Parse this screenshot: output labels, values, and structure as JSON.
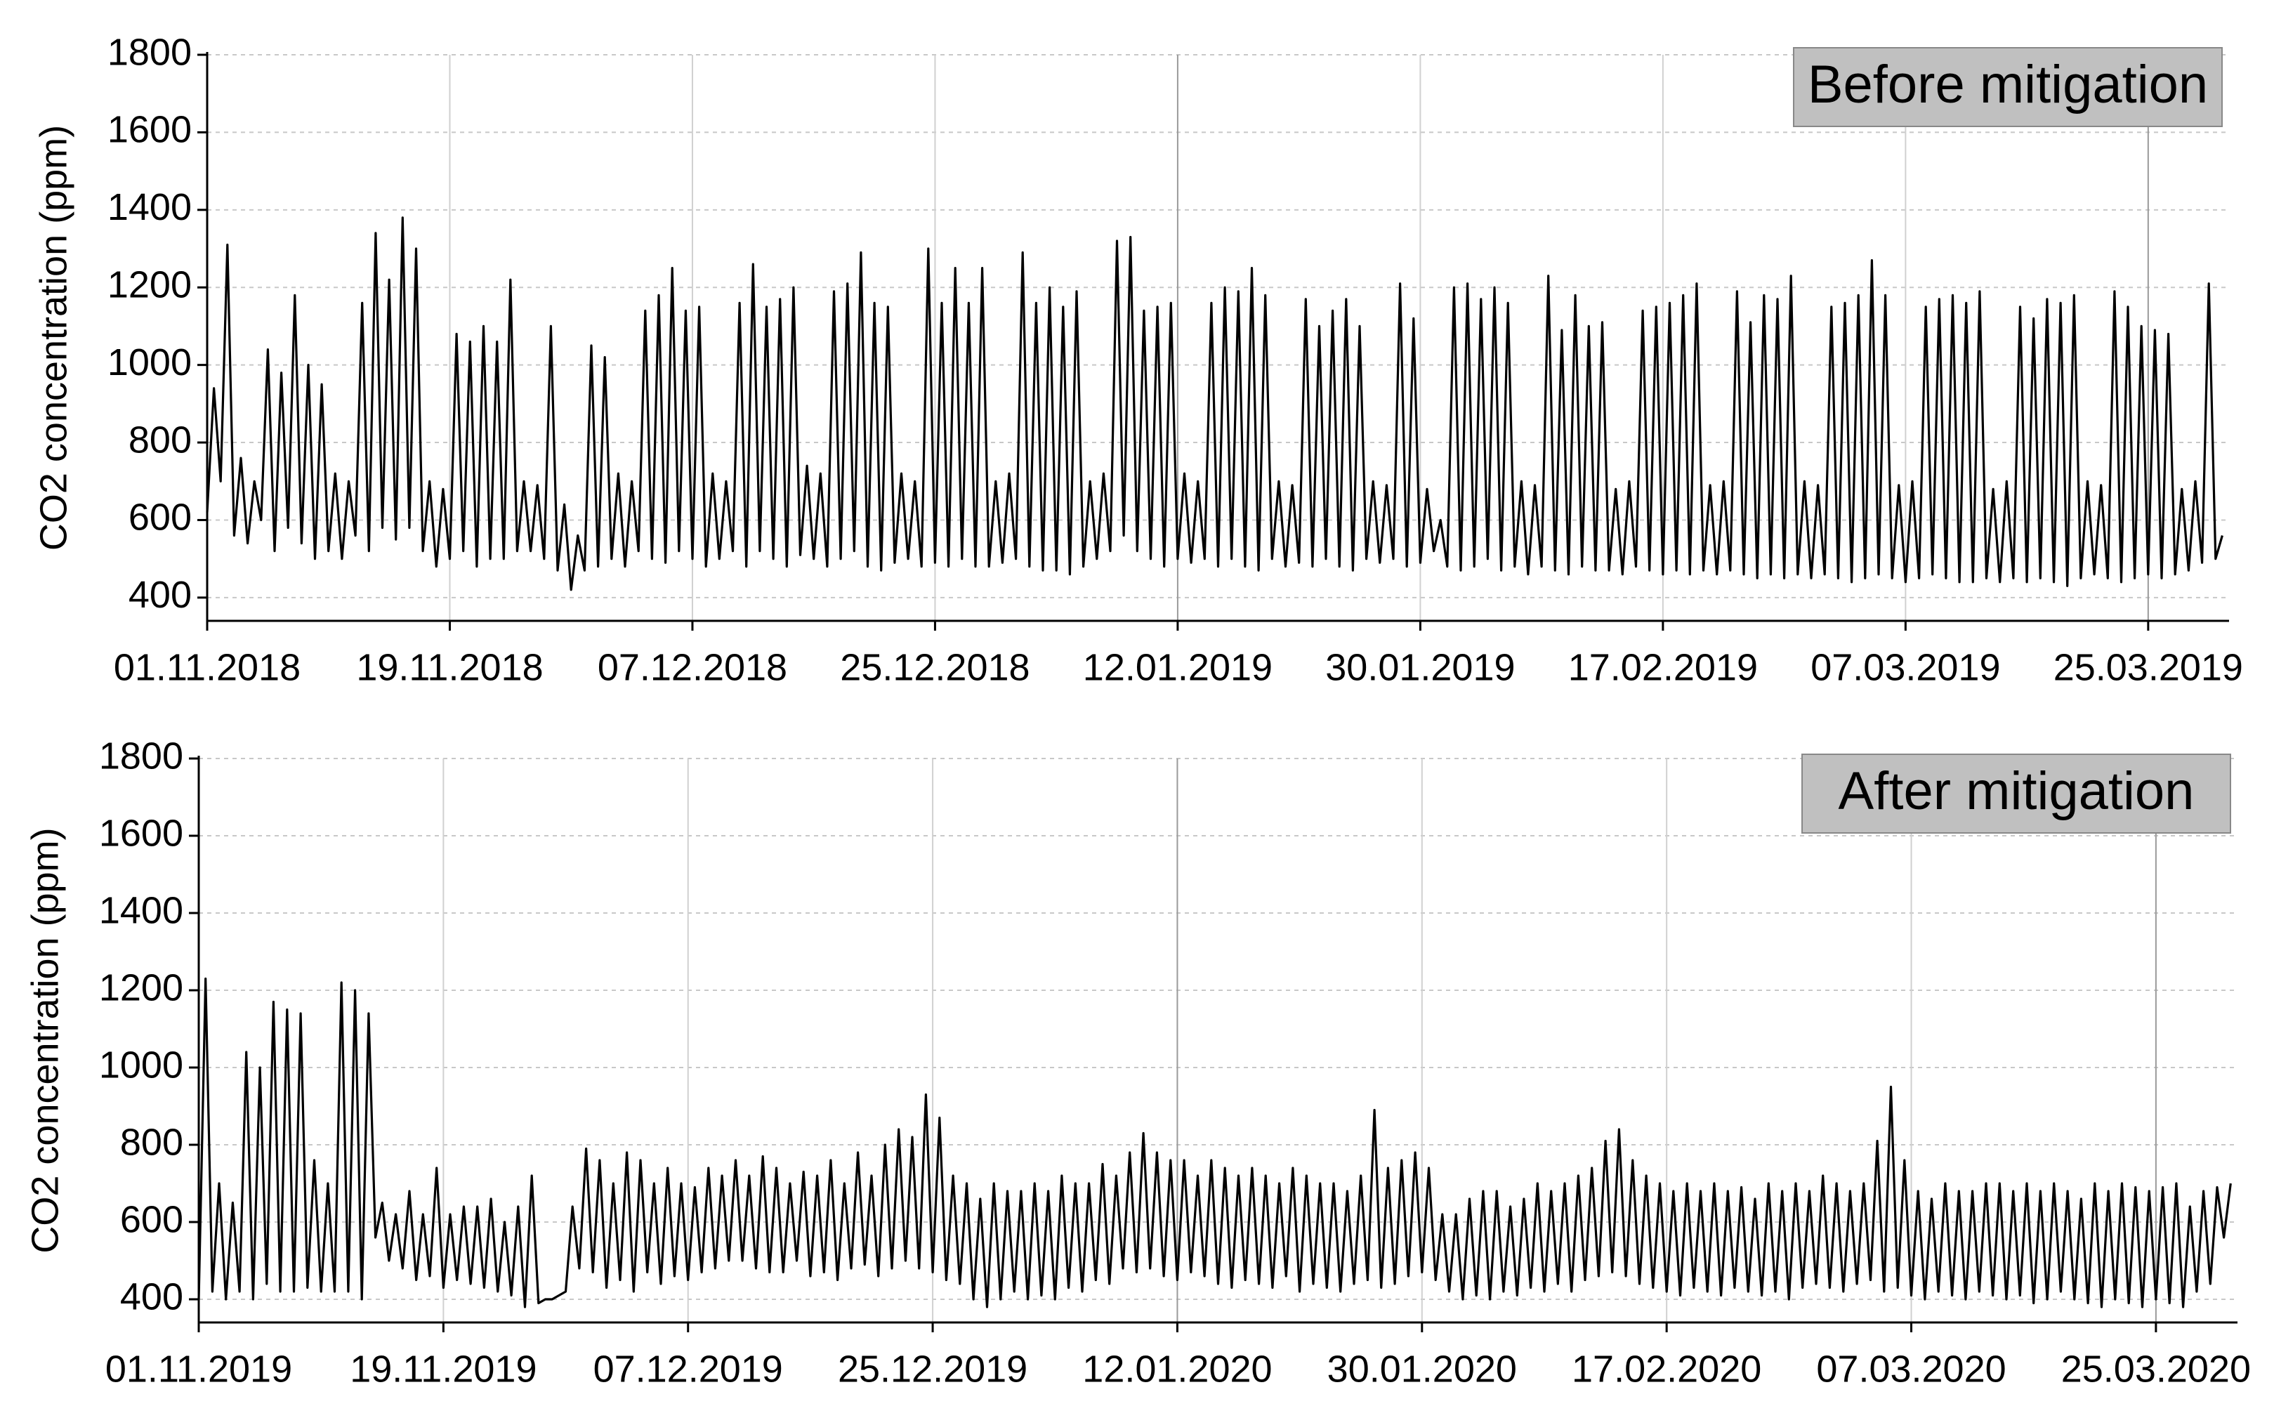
{
  "chart_data": [
    {
      "type": "line",
      "title": "Before mitigation",
      "ylabel": "CO2 concentration (ppm)",
      "color": "#000000",
      "grid": true,
      "xlim": [
        0,
        150
      ],
      "ylim": [
        340,
        1800
      ],
      "yticks": [
        400,
        600,
        800,
        1000,
        1200,
        1400,
        1600,
        1800
      ],
      "xticks": [
        {
          "value": 0,
          "label": "01.11.2018"
        },
        {
          "value": 18,
          "label": "19.11.2018"
        },
        {
          "value": 36,
          "label": "07.12.2018"
        },
        {
          "value": 54,
          "label": "25.12.2018"
        },
        {
          "value": 72,
          "label": "12.01.2019"
        },
        {
          "value": 90,
          "label": "30.01.2019"
        },
        {
          "value": 108,
          "label": "17.02.2019"
        },
        {
          "value": 126,
          "label": "07.03.2019"
        },
        {
          "value": 144,
          "label": "25.03.2019"
        }
      ],
      "x": [
        0,
        0.5,
        1,
        1.5,
        2,
        2.5,
        3,
        3.5,
        4,
        4.5,
        5,
        5.5,
        6,
        6.5,
        7,
        7.5,
        8,
        8.5,
        9,
        9.5,
        10,
        10.5,
        11,
        11.5,
        12,
        12.5,
        13,
        13.5,
        14,
        14.5,
        15,
        15.5,
        16,
        16.5,
        17,
        17.5,
        18,
        18.5,
        19,
        19.5,
        20,
        20.5,
        21,
        21.5,
        22,
        22.5,
        23,
        23.5,
        24,
        24.5,
        25,
        25.5,
        26,
        26.5,
        27,
        27.5,
        28,
        28.5,
        29,
        29.5,
        30,
        30.5,
        31,
        31.5,
        32,
        32.5,
        33,
        33.5,
        34,
        34.5,
        35,
        35.5,
        36,
        36.5,
        37,
        37.5,
        38,
        38.5,
        39,
        39.5,
        40,
        40.5,
        41,
        41.5,
        42,
        42.5,
        43,
        43.5,
        44,
        44.5,
        45,
        45.5,
        46,
        46.5,
        47,
        47.5,
        48,
        48.5,
        49,
        49.5,
        50,
        50.5,
        51,
        51.5,
        52,
        52.5,
        53,
        53.5,
        54,
        54.5,
        55,
        55.5,
        56,
        56.5,
        57,
        57.5,
        58,
        58.5,
        59,
        59.5,
        60,
        60.5,
        61,
        61.5,
        62,
        62.5,
        63,
        63.5,
        64,
        64.5,
        65,
        65.5,
        66,
        66.5,
        67,
        67.5,
        68,
        68.5,
        69,
        69.5,
        70,
        70.5,
        71,
        71.5,
        72,
        72.5,
        73,
        73.5,
        74,
        74.5,
        75,
        75.5,
        76,
        76.5,
        77,
        77.5,
        78,
        78.5,
        79,
        79.5,
        80,
        80.5,
        81,
        81.5,
        82,
        82.5,
        83,
        83.5,
        84,
        84.5,
        85,
        85.5,
        86,
        86.5,
        87,
        87.5,
        88,
        88.5,
        89,
        89.5,
        90,
        90.5,
        91,
        91.5,
        92,
        92.5,
        93,
        93.5,
        94,
        94.5,
        95,
        95.5,
        96,
        96.5,
        97,
        97.5,
        98,
        98.5,
        99,
        99.5,
        100,
        100.5,
        101,
        101.5,
        102,
        102.5,
        103,
        103.5,
        104,
        104.5,
        105,
        105.5,
        106,
        106.5,
        107,
        107.5,
        108,
        108.5,
        109,
        109.5,
        110,
        110.5,
        111,
        111.5,
        112,
        112.5,
        113,
        113.5,
        114,
        114.5,
        115,
        115.5,
        116,
        116.5,
        117,
        117.5,
        118,
        118.5,
        119,
        119.5,
        120,
        120.5,
        121,
        121.5,
        122,
        122.5,
        123,
        123.5,
        124,
        124.5,
        125,
        125.5,
        126,
        126.5,
        127,
        127.5,
        128,
        128.5,
        129,
        129.5,
        130,
        130.5,
        131,
        131.5,
        132,
        132.5,
        133,
        133.5,
        134,
        134.5,
        135,
        135.5,
        136,
        136.5,
        137,
        137.5,
        138,
        138.5,
        139,
        139.5,
        140,
        140.5,
        141,
        141.5,
        142,
        142.5,
        143,
        143.5,
        144,
        144.5,
        145,
        145.5,
        146,
        146.5,
        147,
        147.5,
        148,
        148.5,
        149,
        149.5
      ],
      "values": [
        620,
        940,
        700,
        1310,
        560,
        760,
        540,
        700,
        600,
        1040,
        520,
        980,
        580,
        1180,
        540,
        1000,
        500,
        950,
        520,
        720,
        500,
        700,
        560,
        1160,
        520,
        1340,
        580,
        1220,
        550,
        1380,
        580,
        1300,
        520,
        700,
        480,
        680,
        500,
        1080,
        520,
        1060,
        480,
        1100,
        500,
        1060,
        500,
        1220,
        520,
        700,
        520,
        690,
        500,
        1100,
        470,
        640,
        420,
        560,
        470,
        1050,
        480,
        1020,
        500,
        720,
        480,
        700,
        520,
        1140,
        500,
        1180,
        490,
        1250,
        520,
        1140,
        500,
        1150,
        480,
        720,
        500,
        700,
        520,
        1160,
        480,
        1260,
        520,
        1150,
        500,
        1170,
        480,
        1200,
        510,
        740,
        500,
        720,
        480,
        1190,
        500,
        1210,
        520,
        1290,
        480,
        1160,
        470,
        1150,
        490,
        720,
        500,
        700,
        480,
        1300,
        490,
        1160,
        480,
        1250,
        500,
        1160,
        480,
        1250,
        480,
        700,
        490,
        720,
        500,
        1290,
        480,
        1160,
        470,
        1200,
        470,
        1150,
        460,
        1190,
        480,
        700,
        500,
        720,
        520,
        1320,
        560,
        1330,
        520,
        1140,
        500,
        1150,
        480,
        1160,
        500,
        720,
        490,
        700,
        500,
        1160,
        480,
        1200,
        500,
        1190,
        480,
        1250,
        470,
        1180,
        500,
        700,
        480,
        690,
        490,
        1170,
        480,
        1100,
        500,
        1140,
        480,
        1170,
        470,
        1100,
        500,
        700,
        490,
        690,
        500,
        1210,
        480,
        1120,
        490,
        680,
        520,
        600,
        480,
        1200,
        470,
        1210,
        480,
        1170,
        500,
        1200,
        470,
        1160,
        480,
        700,
        460,
        690,
        480,
        1230,
        470,
        1090,
        460,
        1180,
        480,
        1100,
        470,
        1110,
        470,
        680,
        460,
        700,
        480,
        1140,
        470,
        1150,
        460,
        1160,
        470,
        1180,
        460,
        1210,
        470,
        690,
        460,
        700,
        470,
        1190,
        460,
        1110,
        450,
        1180,
        460,
        1170,
        450,
        1230,
        460,
        700,
        450,
        690,
        460,
        1150,
        450,
        1160,
        440,
        1180,
        450,
        1270,
        460,
        1180,
        450,
        690,
        440,
        700,
        450,
        1150,
        460,
        1170,
        450,
        1180,
        440,
        1160,
        440,
        1190,
        450,
        680,
        440,
        700,
        450,
        1150,
        440,
        1120,
        450,
        1170,
        440,
        1160,
        430,
        1180,
        450,
        700,
        460,
        690,
        450,
        1190,
        440,
        1150,
        450,
        1100,
        460,
        1090,
        450,
        1080,
        460,
        680,
        470,
        700,
        490,
        1210,
        500,
        560
      ]
    },
    {
      "type": "line",
      "title": "After mitigation",
      "ylabel": "CO2 concentration (ppm)",
      "color": "#000000",
      "grid": true,
      "xlim": [
        0,
        150
      ],
      "ylim": [
        340,
        1800
      ],
      "yticks": [
        400,
        600,
        800,
        1000,
        1200,
        1400,
        1600,
        1800
      ],
      "xticks": [
        {
          "value": 0,
          "label": "01.11.2019"
        },
        {
          "value": 18,
          "label": "19.11.2019"
        },
        {
          "value": 36,
          "label": "07.12.2019"
        },
        {
          "value": 54,
          "label": "25.12.2019"
        },
        {
          "value": 72,
          "label": "12.01.2020"
        },
        {
          "value": 90,
          "label": "30.01.2020"
        },
        {
          "value": 108,
          "label": "17.02.2020"
        },
        {
          "value": 126,
          "label": "07.03.2020"
        },
        {
          "value": 144,
          "label": "25.03.2020"
        }
      ],
      "x": [
        0,
        0.5,
        1,
        1.5,
        2,
        2.5,
        3,
        3.5,
        4,
        4.5,
        5,
        5.5,
        6,
        6.5,
        7,
        7.5,
        8,
        8.5,
        9,
        9.5,
        10,
        10.5,
        11,
        11.5,
        12,
        12.5,
        13,
        13.5,
        14,
        14.5,
        15,
        15.5,
        16,
        16.5,
        17,
        17.5,
        18,
        18.5,
        19,
        19.5,
        20,
        20.5,
        21,
        21.5,
        22,
        22.5,
        23,
        23.5,
        24,
        24.5,
        25,
        25.5,
        26,
        26.5,
        27,
        27.5,
        28,
        28.5,
        29,
        29.5,
        30,
        30.5,
        31,
        31.5,
        32,
        32.5,
        33,
        33.5,
        34,
        34.5,
        35,
        35.5,
        36,
        36.5,
        37,
        37.5,
        38,
        38.5,
        39,
        39.5,
        40,
        40.5,
        41,
        41.5,
        42,
        42.5,
        43,
        43.5,
        44,
        44.5,
        45,
        45.5,
        46,
        46.5,
        47,
        47.5,
        48,
        48.5,
        49,
        49.5,
        50,
        50.5,
        51,
        51.5,
        52,
        52.5,
        53,
        53.5,
        54,
        54.5,
        55,
        55.5,
        56,
        56.5,
        57,
        57.5,
        58,
        58.5,
        59,
        59.5,
        60,
        60.5,
        61,
        61.5,
        62,
        62.5,
        63,
        63.5,
        64,
        64.5,
        65,
        65.5,
        66,
        66.5,
        67,
        67.5,
        68,
        68.5,
        69,
        69.5,
        70,
        70.5,
        71,
        71.5,
        72,
        72.5,
        73,
        73.5,
        74,
        74.5,
        75,
        75.5,
        76,
        76.5,
        77,
        77.5,
        78,
        78.5,
        79,
        79.5,
        80,
        80.5,
        81,
        81.5,
        82,
        82.5,
        83,
        83.5,
        84,
        84.5,
        85,
        85.5,
        86,
        86.5,
        87,
        87.5,
        88,
        88.5,
        89,
        89.5,
        90,
        90.5,
        91,
        91.5,
        92,
        92.5,
        93,
        93.5,
        94,
        94.5,
        95,
        95.5,
        96,
        96.5,
        97,
        97.5,
        98,
        98.5,
        99,
        99.5,
        100,
        100.5,
        101,
        101.5,
        102,
        102.5,
        103,
        103.5,
        104,
        104.5,
        105,
        105.5,
        106,
        106.5,
        107,
        107.5,
        108,
        108.5,
        109,
        109.5,
        110,
        110.5,
        111,
        111.5,
        112,
        112.5,
        113,
        113.5,
        114,
        114.5,
        115,
        115.5,
        116,
        116.5,
        117,
        117.5,
        118,
        118.5,
        119,
        119.5,
        120,
        120.5,
        121,
        121.5,
        122,
        122.5,
        123,
        123.5,
        124,
        124.5,
        125,
        125.5,
        126,
        126.5,
        127,
        127.5,
        128,
        128.5,
        129,
        129.5,
        130,
        130.5,
        131,
        131.5,
        132,
        132.5,
        133,
        133.5,
        134,
        134.5,
        135,
        135.5,
        136,
        136.5,
        137,
        137.5,
        138,
        138.5,
        139,
        139.5,
        140,
        140.5,
        141,
        141.5,
        142,
        142.5,
        143,
        143.5,
        144,
        144.5,
        145,
        145.5,
        146,
        146.5,
        147,
        147.5,
        148,
        148.5,
        149,
        149.5
      ],
      "values": [
        400,
        1230,
        420,
        700,
        400,
        650,
        420,
        1040,
        400,
        1000,
        440,
        1170,
        420,
        1150,
        420,
        1140,
        430,
        760,
        420,
        700,
        420,
        1220,
        420,
        1200,
        400,
        1140,
        560,
        650,
        500,
        620,
        480,
        680,
        450,
        620,
        460,
        740,
        430,
        620,
        450,
        640,
        440,
        640,
        430,
        660,
        420,
        600,
        410,
        640,
        380,
        720,
        390,
        400,
        400,
        410,
        420,
        640,
        480,
        790,
        470,
        760,
        430,
        700,
        450,
        780,
        420,
        760,
        470,
        700,
        440,
        740,
        460,
        700,
        450,
        690,
        470,
        740,
        480,
        720,
        500,
        760,
        500,
        720,
        480,
        770,
        470,
        740,
        470,
        700,
        500,
        730,
        460,
        720,
        470,
        760,
        450,
        700,
        480,
        780,
        490,
        720,
        460,
        800,
        480,
        840,
        500,
        820,
        480,
        930,
        470,
        870,
        450,
        720,
        440,
        700,
        400,
        660,
        380,
        700,
        400,
        680,
        420,
        680,
        400,
        700,
        410,
        680,
        400,
        720,
        430,
        700,
        420,
        700,
        450,
        750,
        440,
        720,
        480,
        780,
        470,
        830,
        480,
        780,
        460,
        760,
        450,
        760,
        470,
        720,
        460,
        760,
        440,
        740,
        430,
        720,
        450,
        740,
        440,
        720,
        430,
        700,
        460,
        740,
        420,
        720,
        440,
        700,
        430,
        700,
        420,
        680,
        440,
        720,
        450,
        890,
        430,
        740,
        440,
        760,
        460,
        780,
        470,
        740,
        450,
        620,
        420,
        620,
        400,
        660,
        410,
        680,
        400,
        680,
        420,
        640,
        410,
        660,
        430,
        700,
        420,
        680,
        440,
        700,
        420,
        720,
        450,
        740,
        460,
        810,
        470,
        840,
        460,
        760,
        440,
        720,
        430,
        700,
        420,
        680,
        410,
        700,
        430,
        680,
        420,
        700,
        410,
        680,
        430,
        690,
        420,
        660,
        410,
        700,
        420,
        680,
        400,
        700,
        430,
        680,
        440,
        720,
        430,
        700,
        420,
        680,
        440,
        700,
        450,
        810,
        420,
        950,
        430,
        760,
        410,
        680,
        400,
        660,
        420,
        700,
        410,
        680,
        400,
        680,
        420,
        700,
        410,
        700,
        400,
        680,
        410,
        700,
        390,
        680,
        400,
        700,
        420,
        680,
        400,
        660,
        390,
        700,
        380,
        680,
        400,
        700,
        390,
        690,
        380,
        680,
        400,
        690,
        390,
        700,
        380,
        640,
        420,
        680,
        440,
        690,
        560,
        700
      ]
    }
  ]
}
